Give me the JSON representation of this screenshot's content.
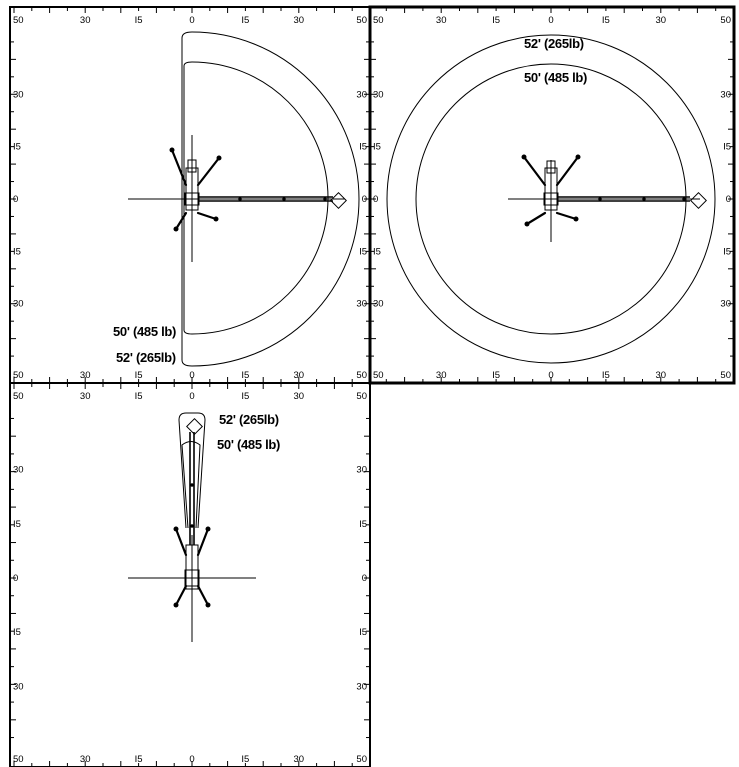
{
  "panels": [
    {
      "id": "half-circle",
      "capacity_labels": [
        {
          "key": "outer",
          "text": "52' (265lb)"
        },
        {
          "key": "inner",
          "text": "50' (485 lb)"
        }
      ]
    },
    {
      "id": "full-circle",
      "capacity_labels": [
        {
          "key": "outer",
          "text": "52' (265lb)"
        },
        {
          "key": "inner",
          "text": "50' (485 lb)"
        }
      ]
    },
    {
      "id": "narrow-front",
      "capacity_labels": [
        {
          "key": "outer",
          "text": "52' (265lb)"
        },
        {
          "key": "inner",
          "text": "50' (485 lb)"
        }
      ]
    }
  ],
  "axis_ticks": {
    "horizontal": [
      "50",
      "30",
      "I5",
      "0",
      "I5",
      "30",
      "50"
    ],
    "vertical": [
      "30",
      "I5",
      "0",
      "I5",
      "30"
    ]
  }
}
